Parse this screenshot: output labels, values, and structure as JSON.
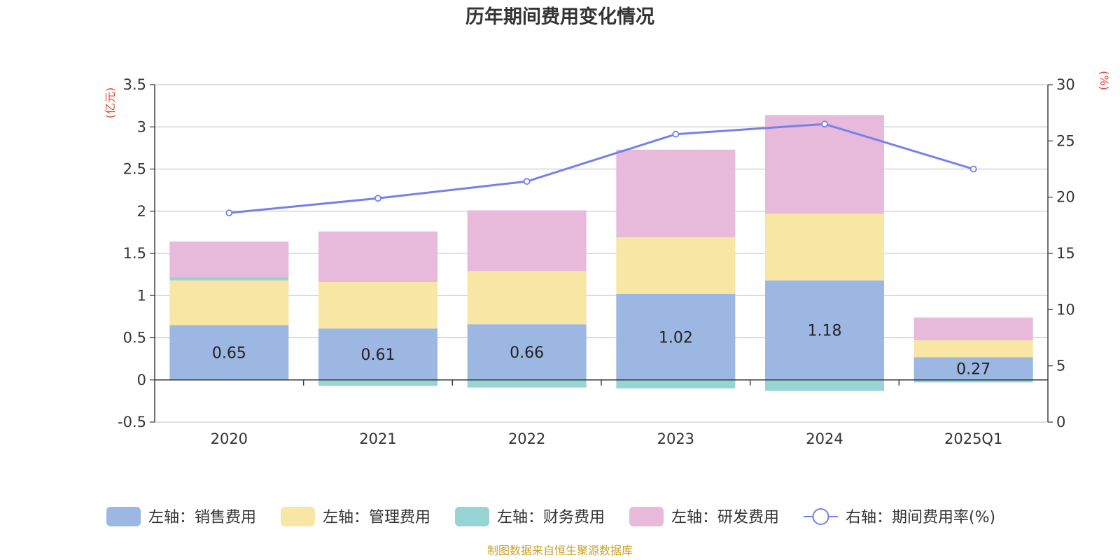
{
  "chart_data": {
    "type": "bar",
    "title": "历年期间费用变化情况",
    "left_axis_unit": "(亿元)",
    "right_axis_unit": "(%)",
    "categories": [
      "2020",
      "2021",
      "2022",
      "2023",
      "2024",
      "2025Q1"
    ],
    "ylim_left": [
      -0.5,
      3.5
    ],
    "yticks_left": [
      "-0.5",
      "0",
      "0.5",
      "1",
      "1.5",
      "2",
      "2.5",
      "3",
      "3.5"
    ],
    "ylim_right": [
      0,
      30
    ],
    "yticks_right": [
      "0",
      "5",
      "10",
      "15",
      "20",
      "25",
      "30"
    ],
    "grid": true,
    "legend_position": "bottom",
    "series": [
      {
        "name": "左轴：销售费用",
        "kind": "bar",
        "axis": "left",
        "color": "#9bb7e2",
        "values": [
          0.65,
          0.61,
          0.66,
          1.02,
          1.18,
          0.27
        ],
        "labels": [
          "0.65",
          "0.61",
          "0.66",
          "1.02",
          "1.18",
          "0.27"
        ]
      },
      {
        "name": "左轴：管理费用",
        "kind": "bar",
        "axis": "left",
        "color": "#f8e6a5",
        "values": [
          0.53,
          0.55,
          0.63,
          0.67,
          0.79,
          0.2
        ]
      },
      {
        "name": "左轴：财务费用",
        "kind": "bar",
        "axis": "left",
        "color": "#97d4d4",
        "values": [
          0.04,
          -0.07,
          -0.09,
          -0.1,
          -0.13,
          -0.03
        ]
      },
      {
        "name": "左轴：研发费用",
        "kind": "bar",
        "axis": "left",
        "color": "#e7b9da",
        "values": [
          0.42,
          0.6,
          0.72,
          1.04,
          1.17,
          0.27
        ]
      },
      {
        "name": "右轴：期间费用率(%)",
        "kind": "line",
        "axis": "right",
        "color": "#7480ec",
        "values": [
          18.6,
          19.9,
          21.4,
          25.6,
          26.5,
          22.5
        ]
      }
    ]
  },
  "source_text": "制图数据来自恒生聚源数据库",
  "colors": {
    "axis_unit": "#e8453c",
    "source": "#c9a227",
    "grid": "#cccccc",
    "axis": "#333333"
  }
}
